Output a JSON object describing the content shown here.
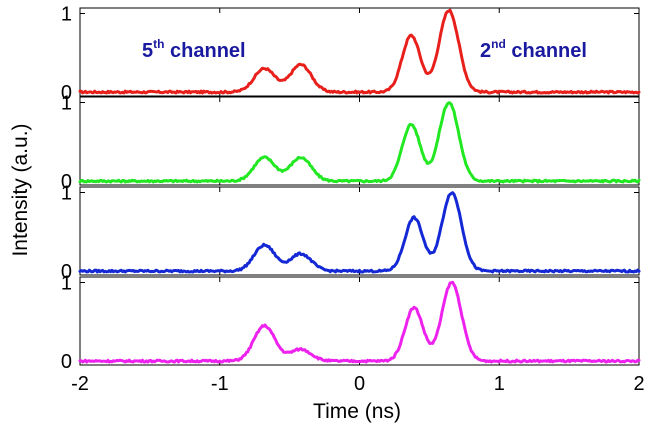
{
  "chart_data": {
    "type": "line",
    "xlabel": "Time (ns)",
    "ylabel": "Intensity (a.u.)",
    "xlim": [
      -2,
      2
    ],
    "x_ticks": [
      "-2",
      "-1",
      "0",
      "1",
      "2"
    ],
    "panels": [
      {
        "color": "#e8201c",
        "y_ticks": [
          "0",
          "1"
        ],
        "ylim": [
          -0.05,
          1.07
        ],
        "peaks": [
          {
            "x": -0.68,
            "y": 0.3
          },
          {
            "x": -0.42,
            "y": 0.35
          },
          {
            "x": 0.37,
            "y": 0.72
          },
          {
            "x": 0.64,
            "y": 1.04
          }
        ]
      },
      {
        "color": "#22e822",
        "y_ticks": [
          "0",
          "1"
        ],
        "ylim": [
          -0.05,
          1.07
        ],
        "peaks": [
          {
            "x": -0.68,
            "y": 0.3
          },
          {
            "x": -0.42,
            "y": 0.3
          },
          {
            "x": 0.37,
            "y": 0.72
          },
          {
            "x": 0.64,
            "y": 1.0
          }
        ]
      },
      {
        "color": "#1428d6",
        "y_ticks": [
          "0",
          "1"
        ],
        "ylim": [
          -0.05,
          1.07
        ],
        "peaks": [
          {
            "x": -0.68,
            "y": 0.33
          },
          {
            "x": -0.42,
            "y": 0.22
          },
          {
            "x": 0.39,
            "y": 0.68
          },
          {
            "x": 0.66,
            "y": 1.0
          }
        ]
      },
      {
        "color": "#ee22ee",
        "y_ticks": [
          "0",
          "1"
        ],
        "ylim": [
          -0.05,
          1.07
        ],
        "peaks": [
          {
            "x": -0.68,
            "y": 0.45
          },
          {
            "x": -0.42,
            "y": 0.15
          },
          {
            "x": 0.39,
            "y": 0.68
          },
          {
            "x": 0.66,
            "y": 1.0
          }
        ]
      }
    ],
    "annotations": {
      "left": {
        "main": "5",
        "sup": "th",
        "rest": " channel"
      },
      "right": {
        "main": "2",
        "sup": "nd",
        "rest": " channel"
      }
    }
  }
}
